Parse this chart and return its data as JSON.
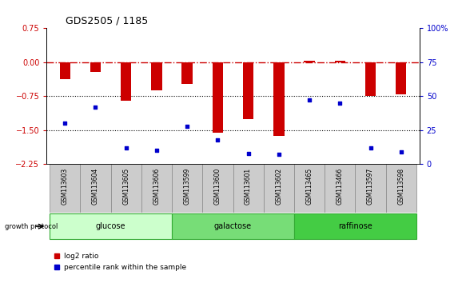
{
  "title": "GDS2505 / 1185",
  "samples": [
    "GSM113603",
    "GSM113604",
    "GSM113605",
    "GSM113606",
    "GSM113599",
    "GSM113600",
    "GSM113601",
    "GSM113602",
    "GSM113465",
    "GSM113466",
    "GSM113597",
    "GSM113598"
  ],
  "log2_ratio": [
    -0.38,
    -0.22,
    -0.85,
    -0.62,
    -0.48,
    -1.55,
    -1.25,
    -1.62,
    0.04,
    0.04,
    -0.75,
    -0.7
  ],
  "percentile_rank": [
    30,
    42,
    12,
    10,
    28,
    18,
    8,
    7,
    47,
    45,
    12,
    9
  ],
  "groups": [
    {
      "label": "glucose",
      "start": 0,
      "end": 4,
      "color": "#ccffcc"
    },
    {
      "label": "galactose",
      "start": 4,
      "end": 8,
      "color": "#77dd77"
    },
    {
      "label": "raffinose",
      "start": 8,
      "end": 12,
      "color": "#44cc44"
    }
  ],
  "ylim_left": [
    -2.25,
    0.75
  ],
  "ylim_right": [
    0,
    100
  ],
  "yticks_left": [
    -2.25,
    -1.5,
    -0.75,
    0,
    0.75
  ],
  "yticks_right": [
    0,
    25,
    50,
    75,
    100
  ],
  "bar_color": "#cc0000",
  "dot_color": "#0000cc",
  "dotted_lines": [
    -0.75,
    -1.5
  ],
  "bar_width": 0.35,
  "legend_red_label": "log2 ratio",
  "legend_blue_label": "percentile rank within the sample",
  "growth_protocol_label": "growth protocol",
  "left_tick_color": "#cc0000",
  "right_tick_color": "#0000cc",
  "group_edge_color": "#33aa33",
  "sample_box_color": "#cccccc",
  "sample_box_edge": "#888888"
}
